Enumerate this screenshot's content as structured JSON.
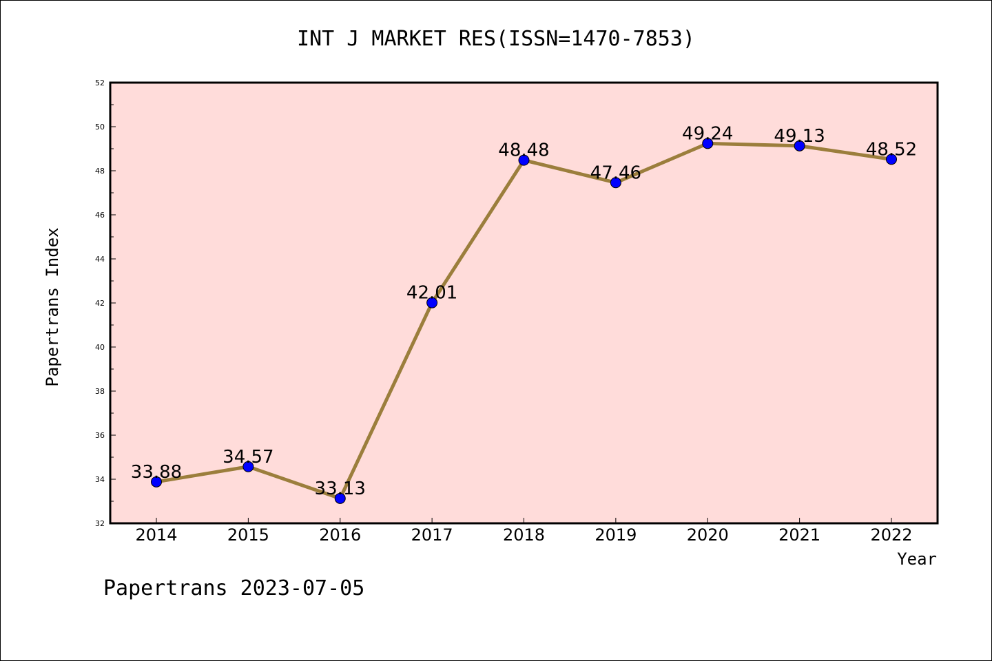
{
  "chart_data": {
    "type": "line",
    "title": "INT J MARKET RES(ISSN=1470-7853)",
    "xlabel": "Year",
    "ylabel": "Papertrans Index",
    "categories": [
      "2014",
      "2015",
      "2016",
      "2017",
      "2018",
      "2019",
      "2020",
      "2021",
      "2022"
    ],
    "values": [
      33.88,
      34.57,
      33.13,
      42.01,
      48.48,
      47.46,
      49.24,
      49.13,
      48.52
    ],
    "data_labels": [
      "33.88",
      "34.57",
      "33.13",
      "42.01",
      "48.48",
      "47.46",
      "49.24",
      "49.13",
      "48.52"
    ],
    "ylim": [
      32,
      52
    ],
    "yticks": [
      "32",
      "34",
      "36",
      "38",
      "40",
      "42",
      "44",
      "46",
      "48",
      "50",
      "52"
    ],
    "grid": false,
    "legend": "none",
    "colors": {
      "plot_background": "#FFDCDA",
      "line": "#9B7E3C",
      "marker": "#0000FF"
    }
  },
  "footer": {
    "text": "Papertrans 2023-07-05"
  }
}
